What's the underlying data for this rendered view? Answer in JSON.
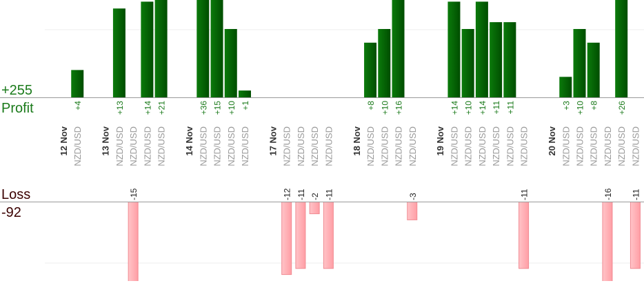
{
  "summary": {
    "profit_total": {
      "value": 255,
      "label": "+255"
    },
    "profit_label": "Profit",
    "loss_label": "Loss",
    "loss_total": -92
  },
  "columns": [
    {
      "date": "12 Nov"
    },
    {
      "pair": "NZD/USD",
      "value": 4,
      "label": "+4"
    },
    {
      "date": "13 Nov"
    },
    {
      "pair": "NZD/USD",
      "value": 13,
      "label": "+13"
    },
    {
      "pair": "NZD/USD",
      "value": -15
    },
    {
      "pair": "NZD/USD",
      "value": 14,
      "label": "+14"
    },
    {
      "pair": "NZD/USD",
      "value": 21,
      "label": "+21"
    },
    {
      "date": "14 Nov"
    },
    {
      "pair": "NZD/USD",
      "value": 36,
      "label": "+36"
    },
    {
      "pair": "NZD/USD",
      "value": 15,
      "label": "+15"
    },
    {
      "pair": "NZD/USD",
      "value": 10,
      "label": "+10"
    },
    {
      "pair": "NZD/USD",
      "value": 1,
      "label": "+1"
    },
    {
      "date": "17 Nov"
    },
    {
      "pair": "NZD/USD",
      "value": -12
    },
    {
      "pair": "NZD/USD",
      "value": -11
    },
    {
      "pair": "NZD/USD",
      "value": -2
    },
    {
      "pair": "NZD/USD",
      "value": -11
    },
    {
      "date": "18 Nov"
    },
    {
      "pair": "NZD/USD",
      "value": 8,
      "label": "+8"
    },
    {
      "pair": "NZD/USD",
      "value": 10,
      "label": "+10"
    },
    {
      "pair": "NZD/USD",
      "value": 16,
      "label": "+16"
    },
    {
      "pair": "NZD/USD",
      "value": -3
    },
    {
      "date": "19 Nov"
    },
    {
      "pair": "NZD/USD",
      "value": 14,
      "label": "+14"
    },
    {
      "pair": "NZD/USD",
      "value": 10,
      "label": "+10"
    },
    {
      "pair": "NZD/USD",
      "value": 14,
      "label": "+14"
    },
    {
      "pair": "NZD/USD",
      "value": 11,
      "label": "+11"
    },
    {
      "pair": "NZD/USD",
      "value": 11,
      "label": "+11"
    },
    {
      "pair": "NZD/USD",
      "value": -11
    },
    {
      "date": "20 Nov"
    },
    {
      "pair": "NZD/USD",
      "value": 3,
      "label": "+3"
    },
    {
      "pair": "NZD/USD",
      "value": 10,
      "label": "+10"
    },
    {
      "pair": "NZD/USD",
      "value": 8,
      "label": "+8"
    },
    {
      "pair": "NZD/USD",
      "value": -16
    },
    {
      "pair": "NZD/USD",
      "value": 26,
      "label": "+26"
    },
    {
      "pair": "NZD/USD",
      "value": -11
    }
  ]
}
